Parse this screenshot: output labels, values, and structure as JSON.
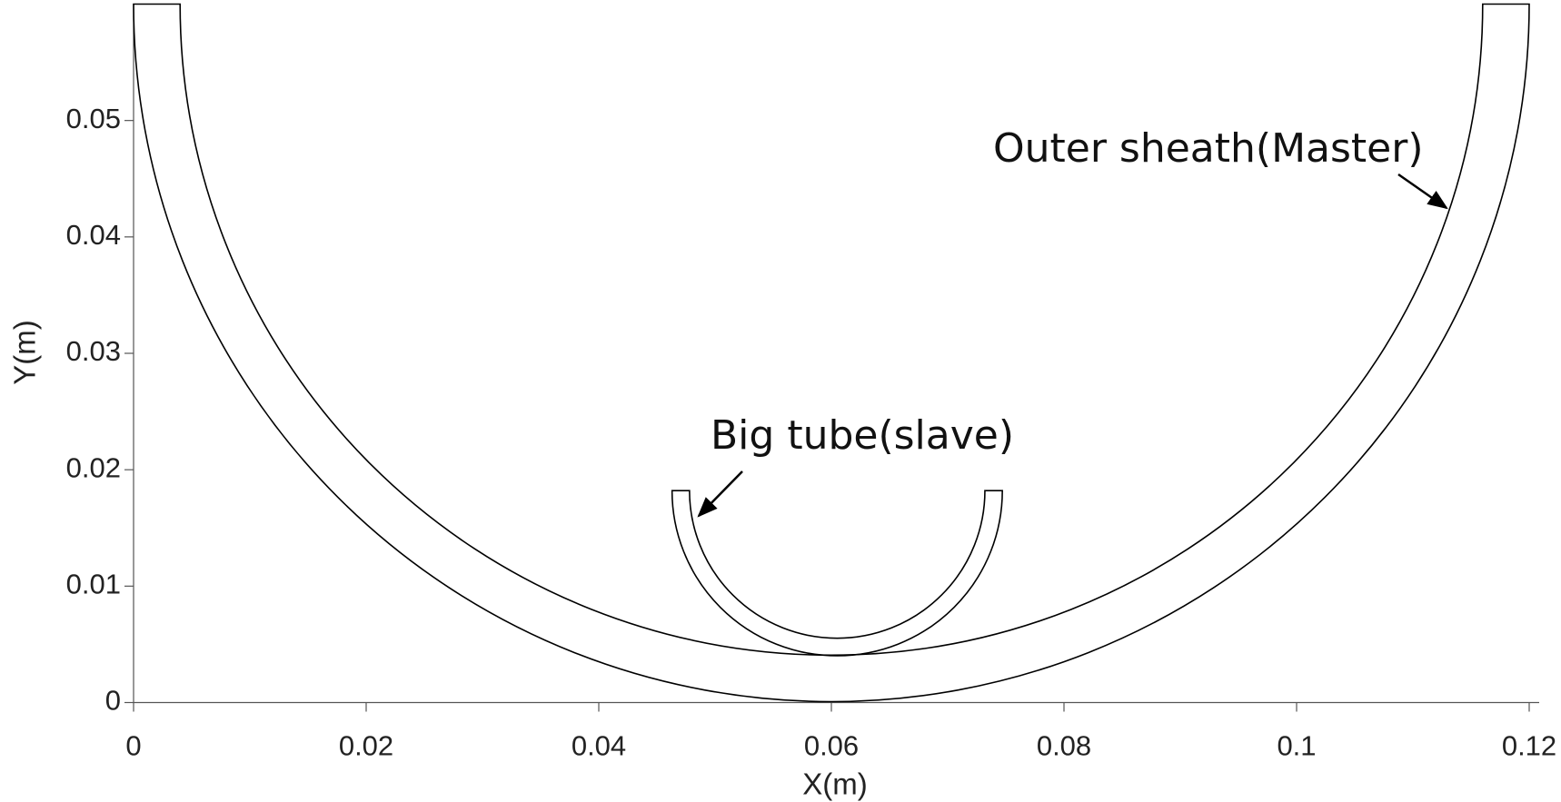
{
  "chart_data": {
    "type": "half-ring",
    "x_label": "X(m)",
    "y_label": "Y(m)",
    "xlim": [
      0,
      0.12
    ],
    "xticks": [
      0,
      0.02,
      0.04,
      0.06,
      0.08,
      0.1,
      0.12
    ],
    "ylim": [
      0,
      0.06
    ],
    "yticks": [
      0,
      0.01,
      0.02,
      0.03,
      0.04,
      0.05
    ],
    "series": [
      {
        "name": "Outer sheath(Master)",
        "color": "#000000",
        "center": [
          0.06,
          0.06
        ],
        "outer_radius": 0.06,
        "inner_radius": 0.056
      },
      {
        "name": "Big tube(slave)",
        "color": "#000000",
        "center": [
          0.0605,
          0.0182
        ],
        "outer_radius": 0.0142,
        "inner_radius": 0.0127
      }
    ]
  }
}
